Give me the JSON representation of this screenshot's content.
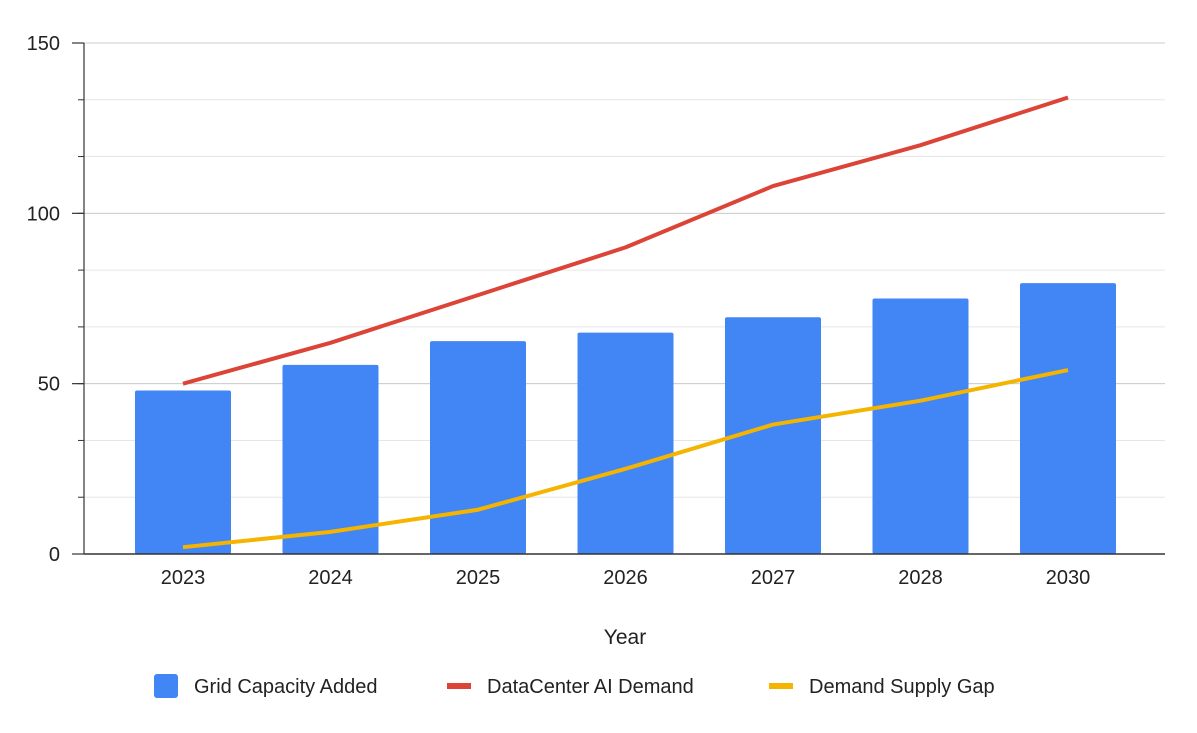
{
  "chart_data": {
    "type": "bar",
    "title": "",
    "xlabel": "Year",
    "ylabel": "",
    "categories": [
      "2023",
      "2024",
      "2025",
      "2026",
      "2027",
      "2028",
      "2030"
    ],
    "ylim": [
      0,
      150
    ],
    "yticks": [
      0,
      50,
      100,
      150
    ],
    "y_minor_step": 16.667,
    "grid": true,
    "legend_position": "bottom",
    "series": [
      {
        "name": "Grid Capacity Added",
        "type": "bar",
        "color": "#4285f4",
        "values": [
          48,
          55.5,
          62.5,
          65,
          69.5,
          75,
          79.5
        ]
      },
      {
        "name": "DataCenter AI Demand",
        "type": "line",
        "color": "#db4437",
        "values": [
          50,
          62,
          76,
          90,
          108,
          120,
          134
        ]
      },
      {
        "name": "Demand Supply Gap",
        "type": "line",
        "color": "#f4b400",
        "values": [
          2,
          6.5,
          13,
          25,
          38,
          45,
          54
        ]
      }
    ]
  }
}
